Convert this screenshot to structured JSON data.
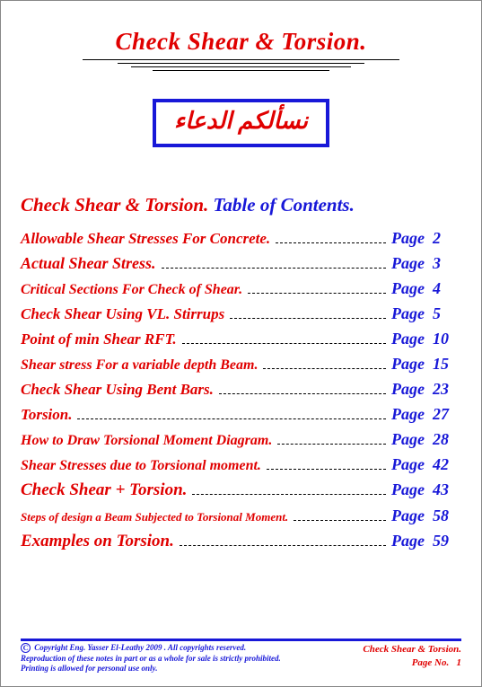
{
  "title": "Check Shear & Torsion.",
  "arabic": "نسألكم الدعاء",
  "toc_header_red": "Check Shear & Torsion.",
  "toc_header_blue": "Table of Contents.",
  "page_label": "Page",
  "toc": [
    {
      "title": "Allowable Shear Stresses For Concrete.",
      "page": "2",
      "fs": 17
    },
    {
      "title": "Actual Shear Stress.",
      "page": "3",
      "fs": 18
    },
    {
      "title": "Critical Sections For Check of Shear.",
      "page": "4",
      "fs": 16
    },
    {
      "title": "Check Shear Using VL. Stirrups",
      "page": "5",
      "fs": 17
    },
    {
      "title": "Point of min Shear RFT.",
      "page": "10",
      "fs": 17
    },
    {
      "title": "Shear stress For a variable depth Beam.",
      "page": "15",
      "fs": 16
    },
    {
      "title": "Check Shear Using Bent Bars.",
      "page": "23",
      "fs": 17
    },
    {
      "title": "Torsion.",
      "page": "27",
      "fs": 17
    },
    {
      "title": "How to Draw Torsional Moment Diagram.",
      "page": "28",
      "fs": 16
    },
    {
      "title": "Shear Stresses due to Torsional moment.",
      "page": "42",
      "fs": 16
    },
    {
      "title": "Check  Shear  +  Torsion.",
      "page": "43",
      "fs": 19
    },
    {
      "title": "Steps of design a Beam Subjected to Torsional Moment.",
      "page": "58",
      "fs": 13
    },
    {
      "title": "Examples on Torsion.",
      "page": "59",
      "fs": 19
    }
  ],
  "footer": {
    "copyright1": "Copyright Eng. Yasser El-Leathy 2009 . All copyrights reserved.",
    "copyright2": "Reproduction of these notes in part or as a whole for sale is strictly prohibited.",
    "copyright3": "Printing is allowed for personal use only.",
    "doc_title": "Check Shear & Torsion.",
    "page_no_label": "Page No.",
    "page_no": "1"
  },
  "colors": {
    "red": "#e00000",
    "blue": "#1818d8"
  }
}
